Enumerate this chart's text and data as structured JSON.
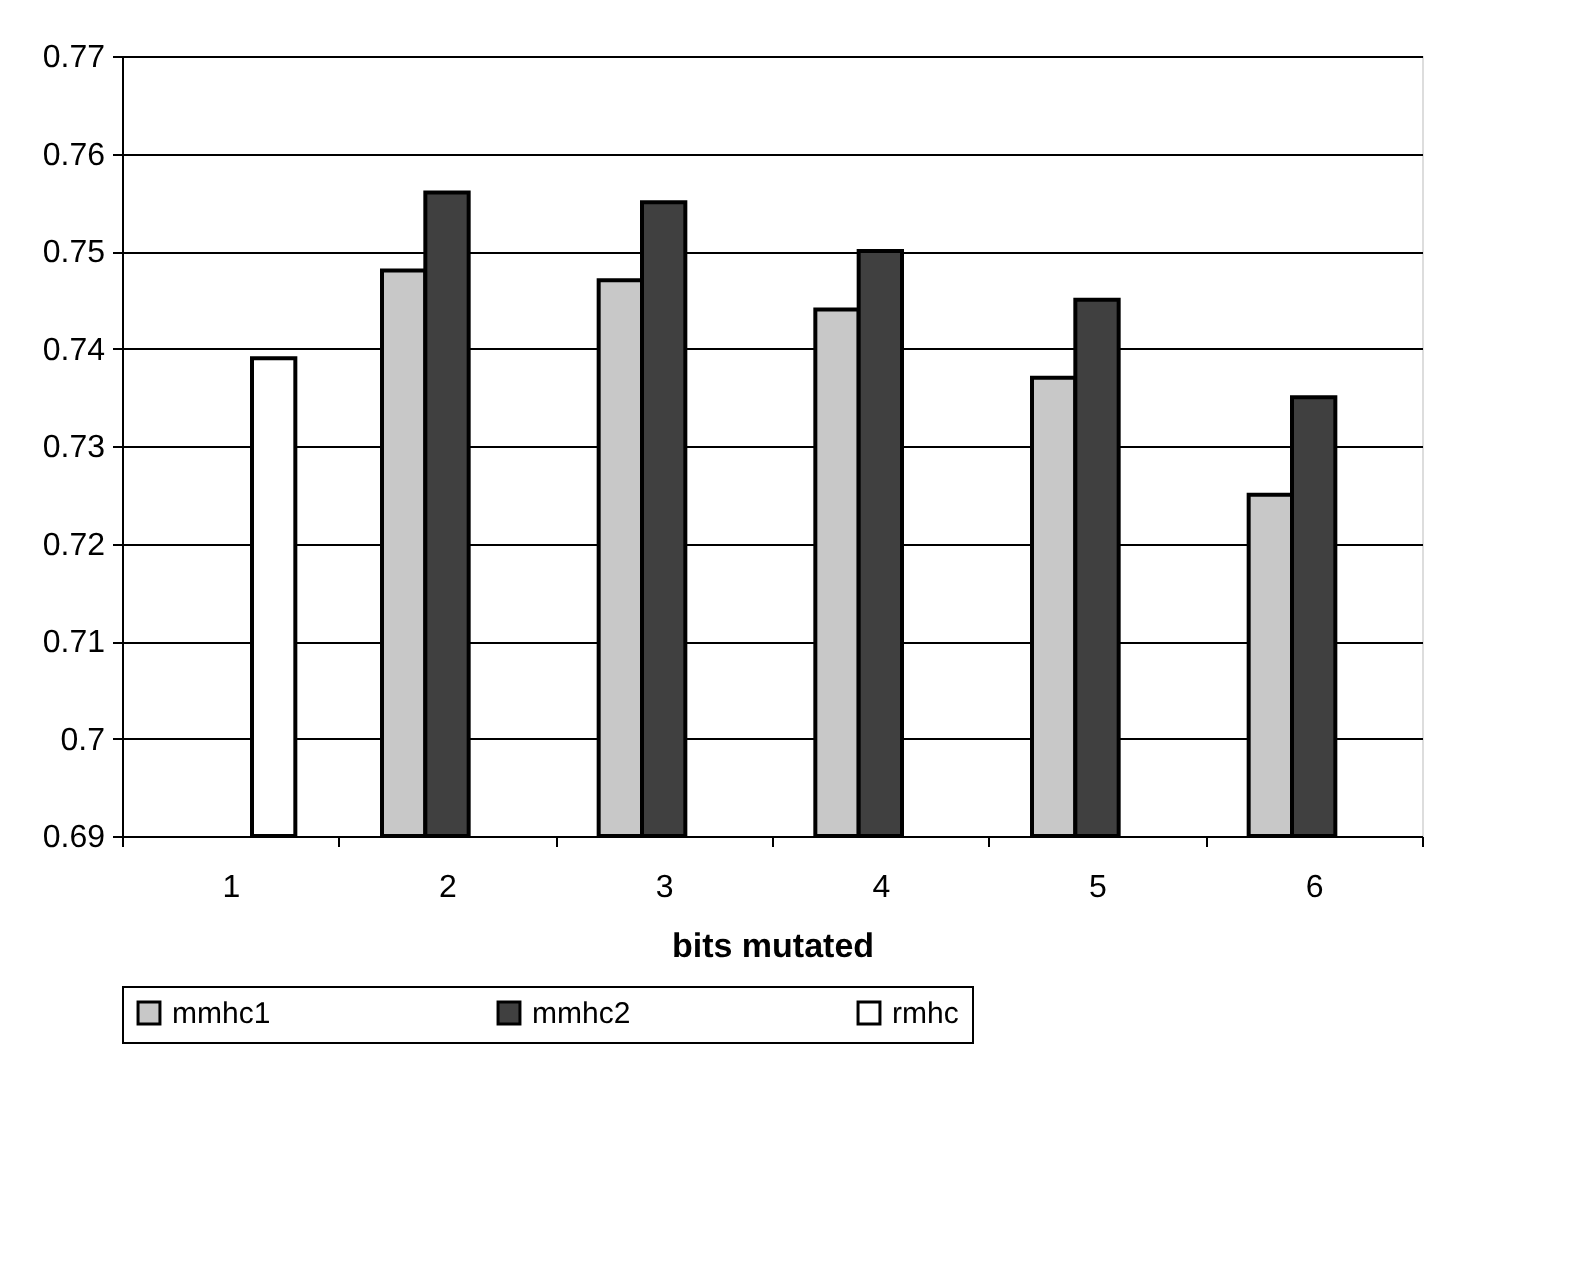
{
  "chart_data": {
    "type": "bar",
    "xlabel": "bits mutated",
    "categories": [
      "1",
      "2",
      "3",
      "4",
      "5",
      "6"
    ],
    "series": [
      {
        "name": "mmhc1",
        "color": "#c8c8c8",
        "values": [
          null,
          0.748,
          0.747,
          0.744,
          0.737,
          0.725
        ]
      },
      {
        "name": "mmhc2",
        "color": "#404040",
        "values": [
          null,
          0.756,
          0.755,
          0.75,
          0.745,
          0.735
        ]
      },
      {
        "name": "rmhc",
        "color": "#ffffff",
        "values": [
          0.739,
          null,
          null,
          null,
          null,
          null
        ]
      }
    ],
    "ylim": [
      0.69,
      0.77
    ],
    "yticks": [
      0.69,
      0.7,
      0.71,
      0.72,
      0.73,
      0.74,
      0.75,
      0.76,
      0.77
    ],
    "grid": "y",
    "legend": "bottom"
  }
}
